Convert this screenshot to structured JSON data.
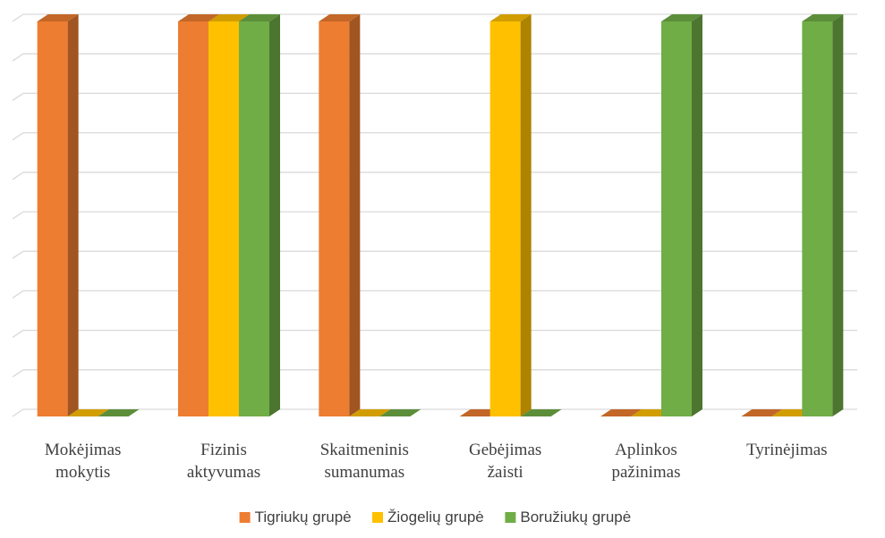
{
  "chart_data": {
    "type": "bar",
    "categories": [
      [
        "Mokėjimas",
        "mokytis"
      ],
      [
        "Fizinis",
        "aktyvumas"
      ],
      [
        "Skaitmeninis",
        "sumanumas"
      ],
      [
        "Gebėjimas",
        "žaisti"
      ],
      [
        "Aplinkos",
        "pažinimas"
      ],
      [
        "Tyrinėjimas"
      ]
    ],
    "series": [
      {
        "name": "Tigriukų grupė",
        "color": "#ED7D31",
        "values": [
          1,
          1,
          1,
          0,
          0,
          0
        ]
      },
      {
        "name": "Žiogelių grupė",
        "color": "#FFC000",
        "values": [
          0,
          1,
          0,
          1,
          0,
          0
        ]
      },
      {
        "name": "Boružiukų grupė",
        "color": "#70AD47",
        "values": [
          0,
          1,
          0,
          0,
          1,
          1
        ]
      }
    ],
    "ylim": [
      0,
      1
    ],
    "grid": true,
    "legend_position": "bottom",
    "style": "3d-clustered-column"
  }
}
